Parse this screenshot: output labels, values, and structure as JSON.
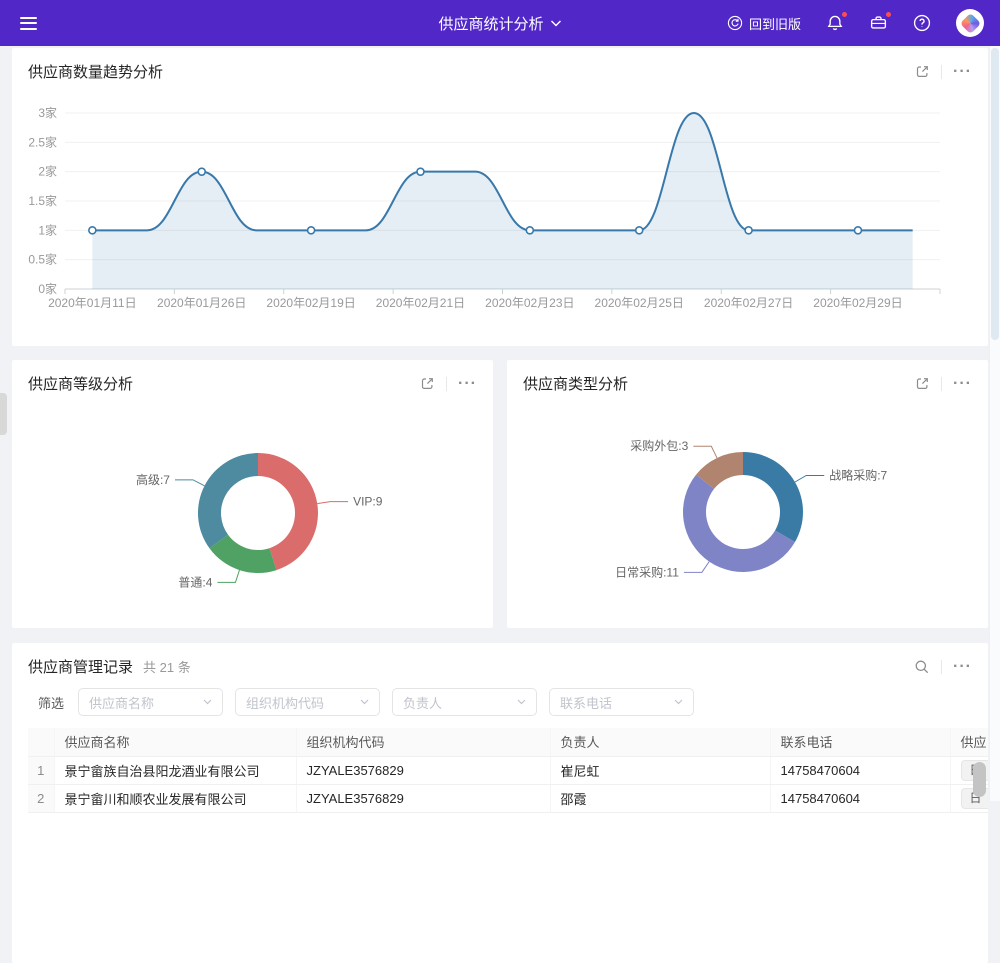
{
  "header": {
    "title": "供应商统计分析",
    "back_label": "回到旧版"
  },
  "cards": {
    "trend": {
      "title": "供应商数量趋势分析"
    },
    "level": {
      "title": "供应商等级分析"
    },
    "type": {
      "title": "供应商类型分析"
    },
    "records": {
      "title": "供应商管理记录",
      "count": "共 21 条",
      "filter_label": "筛选",
      "filters": {
        "f1": "供应商名称",
        "f2": "组织机构代码",
        "f3": "负责人",
        "f4": "联系电话"
      },
      "columns": {
        "c1": "供应商名称",
        "c2": "组织机构代码",
        "c3": "负责人",
        "c4": "联系电话",
        "c5": "供应"
      },
      "rows": [
        {
          "no": "1",
          "name": "景宁畲族自治县阳龙酒业有限公司",
          "code": "JZYALE3576829",
          "owner": "崔尼虹",
          "phone": "14758470604",
          "tag": "日"
        },
        {
          "no": "2",
          "name": "景宁畲川和顺农业发展有限公司",
          "code": "JZYALE3576829",
          "owner": "邵霞",
          "phone": "14758470604",
          "tag": "日"
        }
      ]
    }
  },
  "chart_data": [
    {
      "type": "area",
      "title": "供应商数量趋势分析",
      "x_tick_labels": [
        "2020年01月11日",
        "2020年01月26日",
        "2020年02月19日",
        "2020年02月21日",
        "2020年02月23日",
        "2020年02月25日",
        "2020年02月27日",
        "2020年02月29日"
      ],
      "x_label_interval": 2,
      "values": [
        1,
        1,
        2,
        1,
        1,
        1,
        2,
        2,
        1,
        1,
        1,
        3,
        1,
        1,
        1,
        1
      ],
      "y_ticks": [
        "0家",
        "0.5家",
        "1家",
        "1.5家",
        "2家",
        "2.5家",
        "3家"
      ],
      "ylim": [
        0,
        3
      ],
      "unit": "家",
      "grid": true,
      "smooth": true,
      "line_color": "#3878aa",
      "marker": "hollow-circle"
    },
    {
      "type": "pie",
      "variant": "donut",
      "title": "供应商等级分析",
      "clockwise_from_top": true,
      "slices": [
        {
          "name": "VIP",
          "value": 9,
          "color": "#da6d6b",
          "label": "VIP:9"
        },
        {
          "name": "普通",
          "value": 4,
          "color": "#4fa263",
          "label": "普通:4"
        },
        {
          "name": "高级",
          "value": 7,
          "color": "#4e8aa0",
          "label": "高级:7"
        }
      ]
    },
    {
      "type": "pie",
      "variant": "donut",
      "title": "供应商类型分析",
      "clockwise_from_top": true,
      "slices": [
        {
          "name": "战略采购",
          "value": 7,
          "color": "#3a7ba6",
          "label": "战略采购:7"
        },
        {
          "name": "日常采购",
          "value": 11,
          "color": "#7f84c6",
          "label": "日常采购:11"
        },
        {
          "name": "采购外包",
          "value": 3,
          "color": "#b0846e",
          "label": "采购外包:3"
        }
      ]
    }
  ]
}
